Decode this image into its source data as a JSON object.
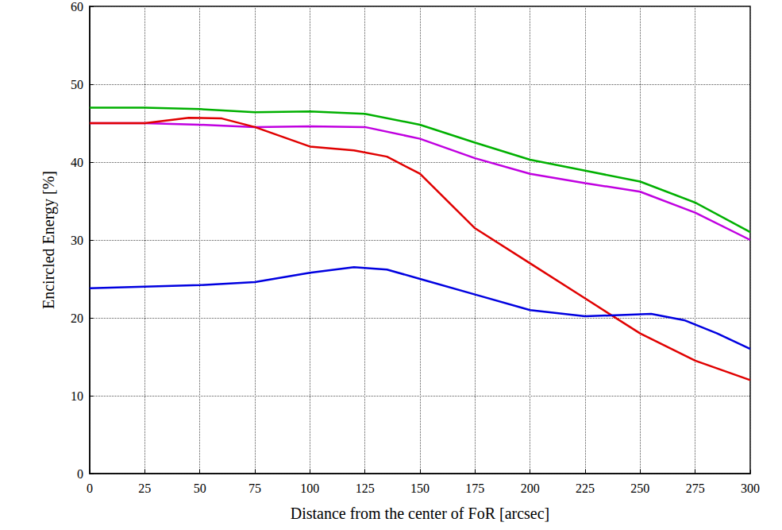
{
  "chart_data": {
    "type": "line",
    "x_label": "Distance from the center of FoR [arcsec]",
    "y_label": "Encircled Energy [%]",
    "xlim": [
      0,
      300
    ],
    "xticks": [
      0,
      25,
      50,
      75,
      100,
      125,
      150,
      175,
      200,
      225,
      250,
      275,
      300
    ],
    "ylim": [
      0,
      60
    ],
    "yticks": [
      0,
      10,
      20,
      30,
      40,
      50,
      60
    ],
    "grid": true,
    "series": [
      {
        "color": "#00b000",
        "x": [
          0,
          25,
          50,
          75,
          100,
          125,
          150,
          175,
          200,
          225,
          250,
          275,
          300
        ],
        "values": [
          47,
          47,
          46.8,
          46.4,
          46.5,
          46.2,
          44.8,
          42.5,
          40.3,
          38.9,
          37.5,
          34.8,
          31
        ]
      },
      {
        "color": "#c000e0",
        "x": [
          0,
          25,
          50,
          75,
          100,
          125,
          150,
          175,
          200,
          225,
          250,
          275,
          300
        ],
        "values": [
          45,
          45,
          44.8,
          44.5,
          44.6,
          44.5,
          43,
          40.5,
          38.5,
          37.3,
          36.2,
          33.5,
          30
        ]
      },
      {
        "color": "#e00000",
        "x": [
          0,
          25,
          45,
          60,
          75,
          100,
          120,
          135,
          150,
          175,
          200,
          225,
          250,
          275,
          300
        ],
        "values": [
          45,
          45,
          45.7,
          45.6,
          44.5,
          42,
          41.5,
          40.7,
          38.5,
          31.5,
          27,
          22.5,
          18,
          14.5,
          12
        ]
      },
      {
        "color": "#0000e0",
        "x": [
          0,
          25,
          50,
          75,
          100,
          120,
          135,
          150,
          175,
          200,
          225,
          255,
          270,
          285,
          300
        ],
        "values": [
          23.8,
          24,
          24.2,
          24.6,
          25.8,
          26.5,
          26.2,
          25,
          23,
          21,
          20.2,
          20.5,
          19.7,
          18,
          16
        ]
      }
    ]
  }
}
